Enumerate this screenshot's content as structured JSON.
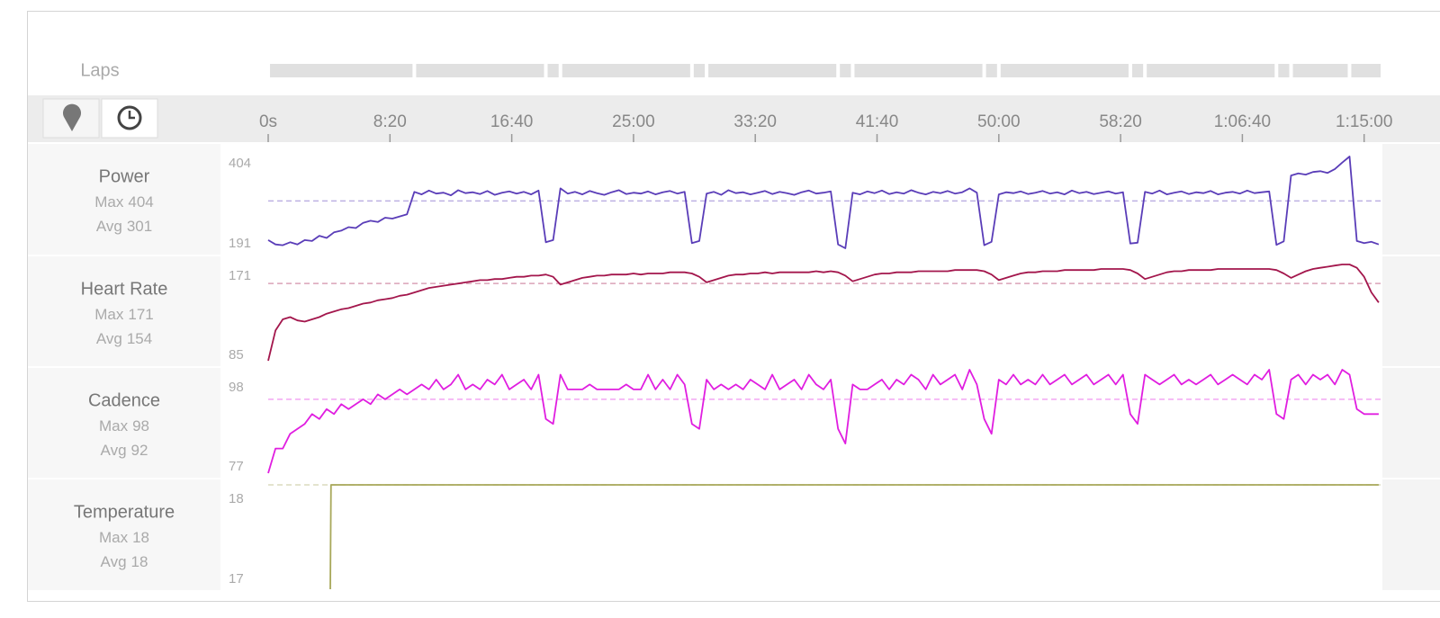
{
  "laps": {
    "label": "Laps",
    "segments": [
      {
        "start": 0,
        "end": 600
      },
      {
        "start": 600,
        "end": 1140
      },
      {
        "start": 1140,
        "end": 1200
      },
      {
        "start": 1200,
        "end": 1740
      },
      {
        "start": 1740,
        "end": 1800
      },
      {
        "start": 1800,
        "end": 2340
      },
      {
        "start": 2340,
        "end": 2400
      },
      {
        "start": 2400,
        "end": 2940
      },
      {
        "start": 2940,
        "end": 3000
      },
      {
        "start": 3000,
        "end": 3540
      },
      {
        "start": 3540,
        "end": 3600
      },
      {
        "start": 3600,
        "end": 4140
      },
      {
        "start": 4140,
        "end": 4200
      },
      {
        "start": 4200,
        "end": 4440
      },
      {
        "start": 4440,
        "end": 4575
      }
    ]
  },
  "time_axis": {
    "xlim": [
      0,
      4575
    ],
    "xticks": [
      {
        "value": 0,
        "label": "0s"
      },
      {
        "value": 500,
        "label": "8:20"
      },
      {
        "value": 1000,
        "label": "16:40"
      },
      {
        "value": 1500,
        "label": "25:00"
      },
      {
        "value": 2000,
        "label": "33:20"
      },
      {
        "value": 2500,
        "label": "41:40"
      },
      {
        "value": 3000,
        "label": "50:00"
      },
      {
        "value": 3500,
        "label": "58:20"
      },
      {
        "value": 4000,
        "label": "1:06:40"
      },
      {
        "value": 4500,
        "label": "1:15:00"
      }
    ],
    "x": [
      0,
      30,
      60,
      90,
      120,
      150,
      180,
      210,
      240,
      270,
      300,
      330,
      360,
      390,
      420,
      450,
      480,
      510,
      540,
      570,
      600,
      630,
      660,
      690,
      720,
      750,
      780,
      810,
      840,
      870,
      900,
      930,
      960,
      990,
      1020,
      1050,
      1080,
      1110,
      1140,
      1170,
      1200,
      1230,
      1260,
      1290,
      1320,
      1350,
      1380,
      1410,
      1440,
      1470,
      1500,
      1530,
      1560,
      1590,
      1620,
      1650,
      1680,
      1710,
      1740,
      1770,
      1800,
      1830,
      1860,
      1890,
      1920,
      1950,
      1980,
      2010,
      2040,
      2070,
      2100,
      2130,
      2160,
      2190,
      2220,
      2250,
      2280,
      2310,
      2340,
      2370,
      2400,
      2430,
      2460,
      2490,
      2520,
      2550,
      2580,
      2610,
      2640,
      2670,
      2700,
      2730,
      2760,
      2790,
      2820,
      2850,
      2880,
      2910,
      2940,
      2970,
      3000,
      3030,
      3060,
      3090,
      3120,
      3150,
      3180,
      3210,
      3240,
      3270,
      3300,
      3330,
      3360,
      3390,
      3420,
      3450,
      3480,
      3510,
      3540,
      3570,
      3600,
      3630,
      3660,
      3690,
      3720,
      3750,
      3780,
      3810,
      3840,
      3870,
      3900,
      3930,
      3960,
      3990,
      4020,
      4050,
      4080,
      4110,
      4140,
      4170,
      4200,
      4230,
      4260,
      4290,
      4320,
      4350,
      4380,
      4410,
      4440,
      4470,
      4500,
      4530,
      4560
    ]
  },
  "chart_data": [
    {
      "type": "line",
      "title": "Power",
      "max_label": "Max",
      "max": 404,
      "avg_label": "Avg",
      "avg": 301,
      "color": "#5a3db8",
      "ylim": [
        191,
        404
      ],
      "yticks": [
        191,
        404
      ],
      "values": [
        210,
        200,
        198,
        205,
        200,
        210,
        208,
        220,
        215,
        228,
        232,
        240,
        238,
        250,
        255,
        252,
        262,
        260,
        265,
        270,
        322,
        316,
        325,
        318,
        320,
        314,
        326,
        319,
        321,
        317,
        324,
        315,
        320,
        323,
        318,
        322,
        316,
        325,
        205,
        210,
        330,
        318,
        322,
        316,
        324,
        319,
        315,
        321,
        326,
        317,
        320,
        318,
        323,
        316,
        321,
        324,
        318,
        322,
        203,
        208,
        318,
        322,
        315,
        326,
        319,
        321,
        316,
        320,
        324,
        317,
        322,
        319,
        315,
        321,
        325,
        318,
        320,
        323,
        200,
        191,
        320,
        316,
        323,
        319,
        325,
        317,
        321,
        318,
        326,
        320,
        316,
        322,
        319,
        324,
        318,
        321,
        330,
        320,
        198,
        206,
        316,
        321,
        319,
        323,
        317,
        320,
        324,
        318,
        321,
        316,
        325,
        319,
        322,
        317,
        320,
        323,
        318,
        321,
        202,
        204,
        322,
        318,
        325,
        316,
        320,
        323,
        317,
        321,
        319,
        324,
        316,
        320,
        322,
        318,
        325,
        319,
        321,
        323,
        199,
        207,
        360,
        365,
        362,
        368,
        370,
        366,
        375,
        390,
        404,
        208,
        203,
        206,
        200
      ]
    },
    {
      "type": "line",
      "title": "Heart Rate",
      "max_label": "Max",
      "max": 171,
      "avg_label": "Avg",
      "avg": 154,
      "color": "#a3164c",
      "ylim": [
        85,
        171
      ],
      "yticks": [
        85,
        171
      ],
      "values": [
        85,
        112,
        122,
        124,
        121,
        120,
        122,
        124,
        127,
        129,
        131,
        132,
        134,
        136,
        137,
        139,
        140,
        141,
        143,
        144,
        146,
        148,
        150,
        151,
        152,
        153,
        154,
        155,
        156,
        157,
        157,
        158,
        158,
        159,
        160,
        160,
        161,
        161,
        162,
        160,
        153,
        155,
        157,
        159,
        160,
        161,
        161,
        162,
        162,
        162,
        163,
        162,
        163,
        163,
        163,
        164,
        164,
        164,
        163,
        160,
        155,
        157,
        159,
        161,
        162,
        162,
        163,
        163,
        164,
        163,
        164,
        164,
        164,
        164,
        164,
        165,
        164,
        165,
        164,
        161,
        156,
        158,
        160,
        162,
        163,
        163,
        164,
        164,
        164,
        165,
        165,
        165,
        165,
        165,
        166,
        166,
        166,
        166,
        165,
        162,
        157,
        159,
        161,
        163,
        164,
        164,
        165,
        165,
        165,
        166,
        166,
        166,
        166,
        166,
        167,
        167,
        167,
        167,
        166,
        163,
        158,
        160,
        162,
        164,
        165,
        165,
        166,
        166,
        166,
        166,
        167,
        167,
        167,
        167,
        167,
        167,
        167,
        167,
        166,
        163,
        159,
        162,
        165,
        167,
        168,
        169,
        170,
        171,
        171,
        168,
        160,
        146,
        137
      ]
    },
    {
      "type": "line",
      "title": "Cadence",
      "max_label": "Max",
      "max": 98,
      "avg_label": "Avg",
      "avg": 92,
      "color": "#e01ee0",
      "ylim": [
        77,
        98
      ],
      "yticks": [
        77,
        98
      ],
      "values": [
        77,
        82,
        82,
        85,
        86,
        87,
        89,
        88,
        90,
        89,
        91,
        90,
        91,
        92,
        91,
        93,
        92,
        93,
        94,
        93,
        94,
        95,
        94,
        96,
        94,
        95,
        97,
        94,
        95,
        94,
        96,
        95,
        97,
        94,
        95,
        96,
        94,
        97,
        88,
        87,
        97,
        94,
        94,
        94,
        95,
        94,
        94,
        94,
        94,
        95,
        94,
        94,
        97,
        94,
        96,
        94,
        97,
        95,
        87,
        86,
        96,
        94,
        95,
        94,
        95,
        94,
        96,
        95,
        94,
        97,
        94,
        95,
        96,
        94,
        97,
        95,
        94,
        96,
        86,
        83,
        95,
        94,
        94,
        95,
        96,
        94,
        96,
        95,
        97,
        96,
        94,
        97,
        95,
        96,
        97,
        94,
        98,
        95,
        88,
        85,
        96,
        95,
        97,
        95,
        96,
        95,
        97,
        95,
        96,
        97,
        95,
        96,
        97,
        95,
        96,
        97,
        95,
        97,
        89,
        87,
        97,
        96,
        95,
        96,
        97,
        95,
        96,
        95,
        96,
        97,
        95,
        96,
        97,
        96,
        95,
        97,
        96,
        98,
        89,
        88,
        96,
        97,
        95,
        97,
        96,
        97,
        95,
        98,
        97,
        90,
        89,
        89,
        89
      ]
    },
    {
      "type": "line",
      "title": "Temperature",
      "max_label": "Max",
      "max": 18,
      "avg_label": "Avg",
      "avg": 18,
      "color": "#a8a85a",
      "ylim": [
        17,
        18
      ],
      "yticks": [
        17,
        18
      ],
      "x": [
        255,
        258,
        4560
      ],
      "values": [
        17,
        18,
        18
      ]
    }
  ]
}
